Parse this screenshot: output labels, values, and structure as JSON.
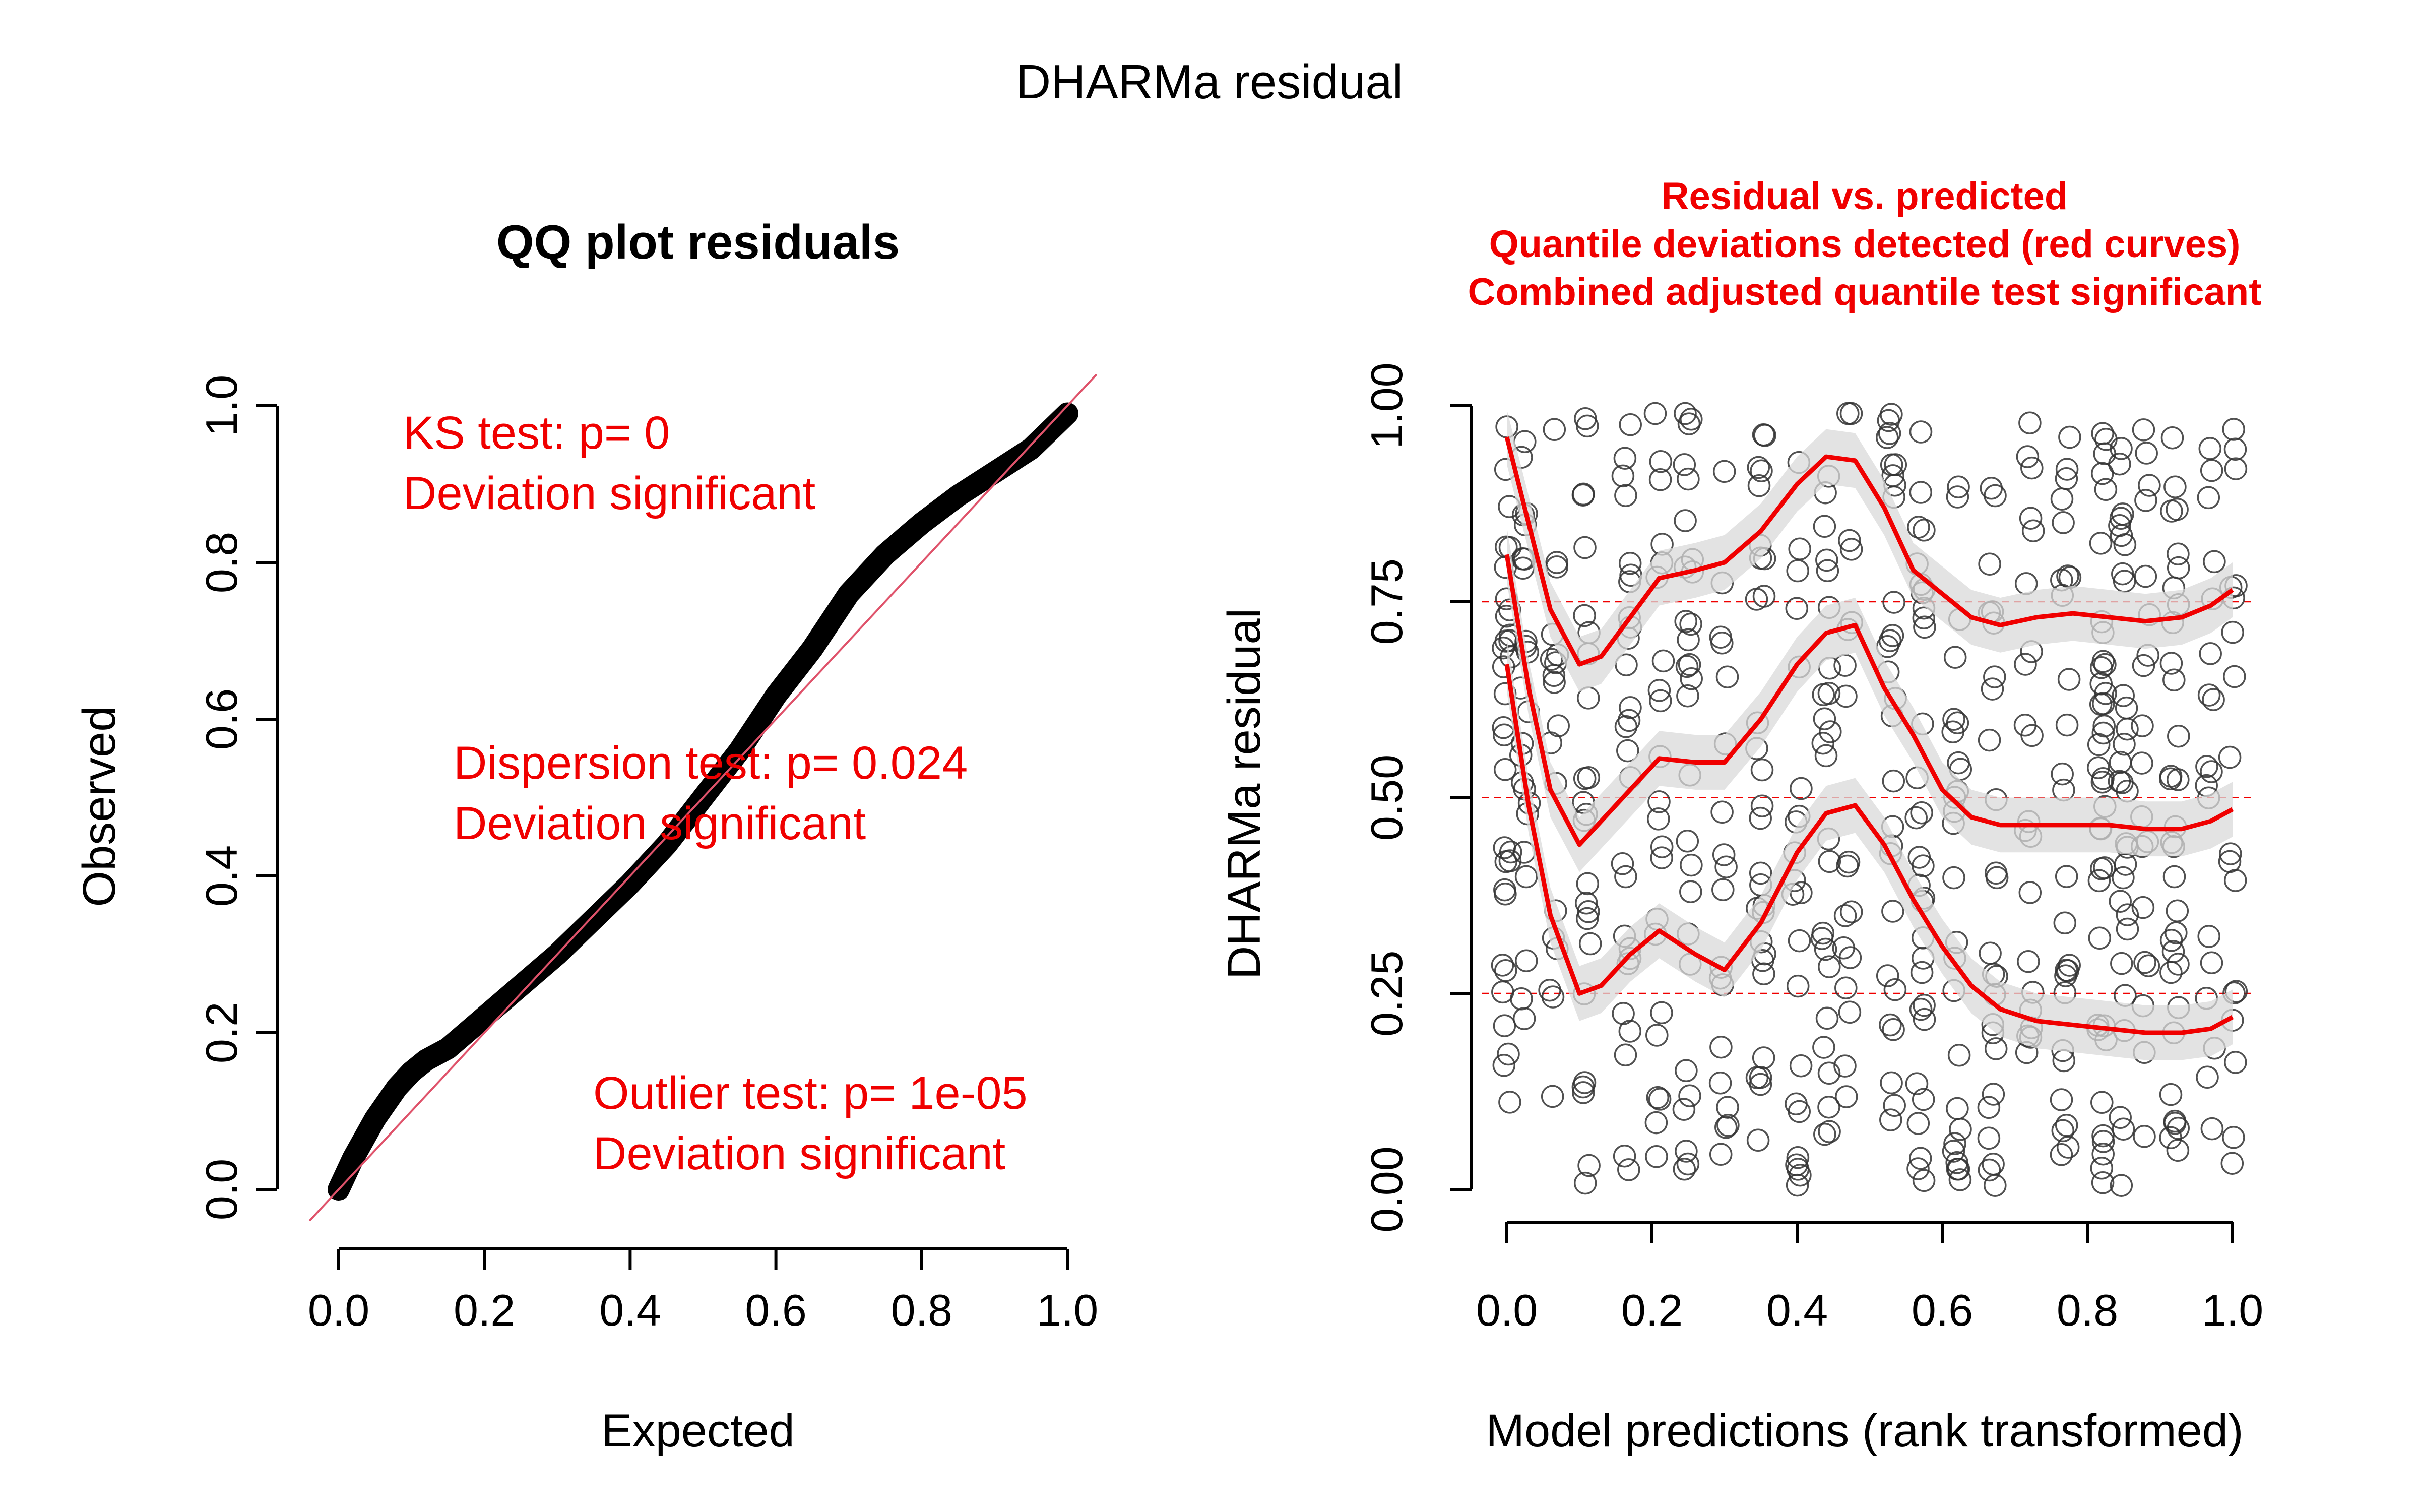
{
  "figure": {
    "title": "DHARMa residual"
  },
  "colors": {
    "red": "#f00000",
    "black": "#000000",
    "refline": "#df536b",
    "band": "#d9d9d9",
    "hgrid": "#f00000"
  },
  "chart_data": [
    {
      "type": "scatter",
      "title": "QQ plot residuals",
      "xlabel": "Expected",
      "ylabel": "Observed",
      "xlim": [
        0,
        1
      ],
      "ylim": [
        0,
        1
      ],
      "xticks": [
        "0.0",
        "0.2",
        "0.4",
        "0.6",
        "0.8",
        "1.0"
      ],
      "yticks": [
        "0.0",
        "0.2",
        "0.4",
        "0.6",
        "0.8",
        "1.0"
      ],
      "reference_line": {
        "intercept": 0,
        "slope": 1
      },
      "observed_curve": {
        "x": [
          0.0,
          0.02,
          0.05,
          0.08,
          0.1,
          0.12,
          0.15,
          0.2,
          0.25,
          0.3,
          0.35,
          0.4,
          0.45,
          0.5,
          0.55,
          0.6,
          0.65,
          0.7,
          0.75,
          0.8,
          0.85,
          0.9,
          0.95,
          1.0
        ],
        "y": [
          0.0,
          0.04,
          0.09,
          0.13,
          0.15,
          0.165,
          0.18,
          0.22,
          0.26,
          0.3,
          0.345,
          0.39,
          0.44,
          0.5,
          0.56,
          0.63,
          0.69,
          0.76,
          0.81,
          0.85,
          0.885,
          0.915,
          0.945,
          0.99
        ]
      },
      "annotations": [
        {
          "line1": "KS test: p= 0",
          "line2": "Deviation  significant"
        },
        {
          "line1": "Dispersion test: p= 0.024",
          "line2": "Deviation  significant"
        },
        {
          "line1": "Outlier test: p= 1e-05",
          "line2": "Deviation  significant"
        }
      ]
    },
    {
      "type": "scatter",
      "title_lines": [
        "Residual vs. predicted",
        "Quantile deviations detected (red curves)",
        "Combined adjusted quantile test significant"
      ],
      "xlabel": "Model predictions (rank transformed)",
      "ylabel": "DHARMa residual",
      "xlim": [
        0,
        1
      ],
      "ylim": [
        0,
        1
      ],
      "xticks": [
        "0.0",
        "0.2",
        "0.4",
        "0.6",
        "0.8",
        "1.0"
      ],
      "yticks": [
        "0.00",
        "0.25",
        "0.50",
        "0.75",
        "1.00"
      ],
      "grid": {
        "horizontal": [
          0.25,
          0.5,
          0.75
        ],
        "style": "dashed"
      },
      "x_clusters": [
        0.0,
        0.025,
        0.065,
        0.11,
        0.165,
        0.21,
        0.25,
        0.3,
        0.35,
        0.4,
        0.44,
        0.47,
        0.53,
        0.57,
        0.62,
        0.67,
        0.72,
        0.77,
        0.82,
        0.85,
        0.88,
        0.92,
        0.97,
        1.0
      ],
      "quantile_curves": [
        {
          "quantile": 0.75,
          "x": [
            0.0,
            0.03,
            0.06,
            0.1,
            0.13,
            0.17,
            0.21,
            0.26,
            0.3,
            0.35,
            0.4,
            0.44,
            0.48,
            0.52,
            0.56,
            0.6,
            0.64,
            0.68,
            0.73,
            0.78,
            0.83,
            0.88,
            0.93,
            0.97,
            1.0
          ],
          "y": [
            0.96,
            0.85,
            0.74,
            0.67,
            0.68,
            0.73,
            0.78,
            0.79,
            0.8,
            0.84,
            0.9,
            0.935,
            0.93,
            0.87,
            0.79,
            0.76,
            0.73,
            0.72,
            0.73,
            0.735,
            0.73,
            0.725,
            0.73,
            0.745,
            0.765
          ]
        },
        {
          "quantile": 0.5,
          "x": [
            0.0,
            0.03,
            0.06,
            0.1,
            0.13,
            0.17,
            0.21,
            0.26,
            0.3,
            0.35,
            0.4,
            0.44,
            0.48,
            0.52,
            0.56,
            0.6,
            0.64,
            0.68,
            0.73,
            0.78,
            0.83,
            0.88,
            0.93,
            0.97,
            1.0
          ],
          "y": [
            0.81,
            0.64,
            0.51,
            0.44,
            0.47,
            0.51,
            0.55,
            0.545,
            0.545,
            0.6,
            0.67,
            0.71,
            0.72,
            0.64,
            0.58,
            0.51,
            0.475,
            0.465,
            0.465,
            0.465,
            0.465,
            0.46,
            0.46,
            0.47,
            0.485
          ]
        },
        {
          "quantile": 0.25,
          "x": [
            0.0,
            0.03,
            0.06,
            0.1,
            0.13,
            0.17,
            0.21,
            0.26,
            0.3,
            0.35,
            0.4,
            0.44,
            0.48,
            0.52,
            0.56,
            0.6,
            0.64,
            0.68,
            0.73,
            0.78,
            0.83,
            0.88,
            0.93,
            0.97,
            1.0
          ],
          "y": [
            0.67,
            0.49,
            0.35,
            0.25,
            0.26,
            0.3,
            0.33,
            0.3,
            0.28,
            0.34,
            0.43,
            0.48,
            0.49,
            0.44,
            0.37,
            0.31,
            0.26,
            0.23,
            0.215,
            0.21,
            0.205,
            0.2,
            0.2,
            0.205,
            0.22
          ]
        }
      ]
    }
  ]
}
